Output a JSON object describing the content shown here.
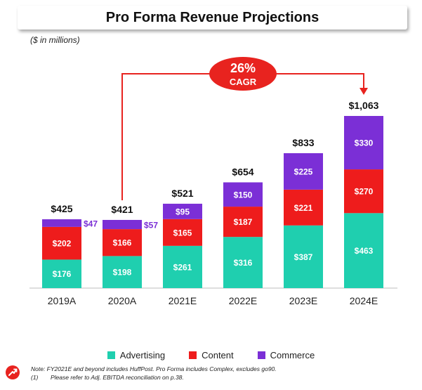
{
  "title": "Pro Forma Revenue Projections",
  "subtitle": "($ in millions)",
  "cagr": {
    "value": "26%",
    "label": "CAGR"
  },
  "colors": {
    "Advertising": "#1fcfaf",
    "Content": "#ee1c1c",
    "Commerce": "#7b2fd6",
    "accent": "#e8231f"
  },
  "chart_data": {
    "type": "bar",
    "stacked": true,
    "categories": [
      "2019A",
      "2020A",
      "2021E",
      "2022E",
      "2023E",
      "2024E"
    ],
    "series": [
      {
        "name": "Advertising",
        "values": [
          176,
          198,
          261,
          316,
          387,
          463
        ]
      },
      {
        "name": "Content",
        "values": [
          202,
          166,
          165,
          187,
          221,
          270
        ]
      },
      {
        "name": "Commerce",
        "values": [
          47,
          57,
          95,
          150,
          225,
          330
        ]
      }
    ],
    "totals": [
      "$425",
      "$421",
      "$521",
      "$654",
      "$833",
      "$1,063"
    ],
    "value_labels": {
      "Advertising": [
        "$176",
        "$198",
        "$261",
        "$316",
        "$387",
        "$463"
      ],
      "Content": [
        "$202",
        "$166",
        "$165",
        "$187",
        "$221",
        "$270"
      ],
      "Commerce": [
        "$47",
        "$57",
        "$95",
        "$150",
        "$225",
        "$330"
      ]
    },
    "ylim": [
      0,
      1063
    ],
    "legend_position": "bottom"
  },
  "legend": [
    {
      "label": "Advertising",
      "color": "#1fcfaf"
    },
    {
      "label": "Content",
      "color": "#ee1c1c"
    },
    {
      "label": "Commerce",
      "color": "#7b2fd6"
    }
  ],
  "notes": {
    "line1": "Note: FY2021E and beyond includes HuffPost. Pro Forma includes Complex, excludes go90.",
    "line2_index": "(1)",
    "line2_text": "Please refer to Adj. EBITDA reconciliation on p.38."
  }
}
